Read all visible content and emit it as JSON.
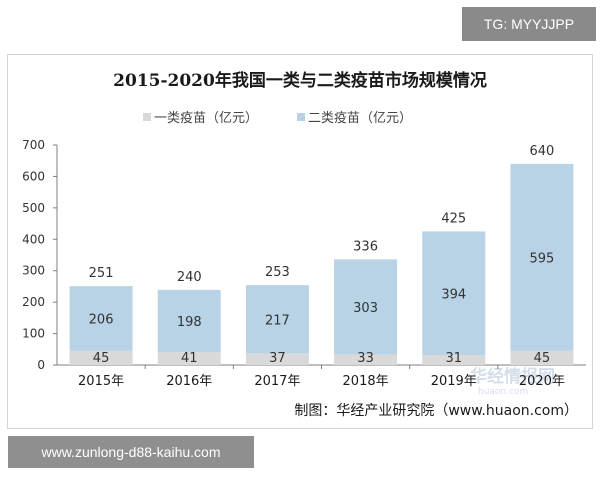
{
  "overlays": {
    "top_tag": "TG: MYYJJPP",
    "bottom_tag": "www.zunlong-d88-kaihu.com",
    "watermark_cn": "华经情报网",
    "watermark_en": "huaon.com"
  },
  "colors": {
    "series1": "#d9d9d9",
    "series2": "#b8d3e6",
    "axis": "#7f7f7f",
    "text": "#1a1a1a"
  },
  "chart_data": {
    "type": "bar",
    "stacked": true,
    "title": "2015-2020年我国一类与二类疫苗市场规模情况",
    "categories": [
      "2015年",
      "2016年",
      "2017年",
      "2018年",
      "2019年",
      "2020年"
    ],
    "series": [
      {
        "name": "一类疫苗（亿元）",
        "values": [
          45,
          41,
          37,
          33,
          31,
          45
        ]
      },
      {
        "name": "二类疫苗（亿元）",
        "values": [
          206,
          198,
          217,
          303,
          394,
          595
        ]
      }
    ],
    "totals": [
      251,
      240,
      253,
      336,
      425,
      640
    ],
    "ylim": [
      0,
      700
    ],
    "yticks": [
      0,
      100,
      200,
      300,
      400,
      500,
      600,
      700
    ],
    "grid": false,
    "legend_position": "top",
    "source": "制图：华经产业研究院（www.huaon.com）"
  }
}
